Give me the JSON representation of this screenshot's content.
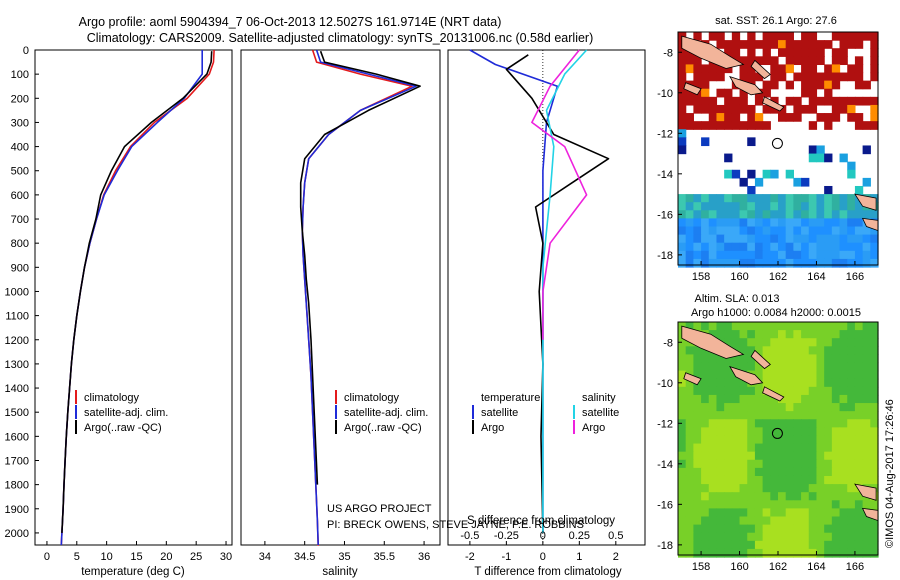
{
  "title": {
    "line1": "Argo profile: aoml 5904394_7 06-Oct-2013 12.5027S 161.9714E (NRT data)",
    "line2": "Climatology: CARS2009. Satellite-adjusted climatology: synTS_20131006.nc (0.58d earlier)"
  },
  "colors": {
    "climatology": "#e31a1c",
    "satellite": "#1f2bd8",
    "argo": "#000000",
    "sat_diff": "#22d3e6",
    "argo_diff": "#ee22dd"
  },
  "chart_data": [
    {
      "type": "line",
      "name": "temperature",
      "xlabel": "temperature (deg C)",
      "ylabel": "",
      "xlim": [
        -2,
        31
      ],
      "ylim": [
        2050,
        0
      ],
      "xticks": [
        0,
        5,
        10,
        15,
        20,
        25,
        30
      ],
      "yticks": [
        0,
        100,
        200,
        300,
        400,
        500,
        600,
        700,
        800,
        900,
        1000,
        1100,
        1200,
        1300,
        1400,
        1500,
        1600,
        1700,
        1800,
        1900,
        2000
      ],
      "series": [
        {
          "name": "climatology",
          "color": "#e31a1c",
          "x": [
            28,
            27.9,
            27.2,
            23.5,
            18,
            14,
            11.5,
            9.5,
            8.3,
            7.2,
            6.3,
            5.6,
            5,
            4.5,
            4.1,
            3.8,
            3.5,
            3.25,
            3.05,
            2.85,
            2.7,
            2.5,
            2.4
          ],
          "y": [
            0,
            50,
            100,
            200,
            300,
            400,
            500,
            600,
            700,
            800,
            900,
            1000,
            1100,
            1200,
            1300,
            1400,
            1500,
            1600,
            1700,
            1800,
            1900,
            2000,
            2050
          ]
        },
        {
          "name": "satellite-adj. clim.",
          "color": "#1f2bd8",
          "x": [
            26,
            26,
            26,
            23,
            18.5,
            14.2,
            11.8,
            9.6,
            8.3,
            7.2,
            6.3,
            5.6,
            5,
            4.5,
            4.1,
            3.8,
            3.5,
            3.25,
            3.05,
            2.85,
            2.7,
            2.5,
            2.4
          ],
          "y": [
            0,
            50,
            100,
            200,
            300,
            400,
            500,
            600,
            700,
            800,
            900,
            1000,
            1100,
            1200,
            1300,
            1400,
            1500,
            1600,
            1700,
            1800,
            1900,
            2000,
            2050
          ]
        },
        {
          "name": "Argo(..raw -QC)",
          "color": "#000000",
          "x": [
            27.6,
            27.5,
            26.8,
            22.8,
            17.5,
            13,
            10.8,
            9,
            8.2,
            7.1,
            6.3,
            5.6,
            5,
            4.5,
            4.1,
            3.8,
            3.5,
            3.25,
            3.05,
            2.85,
            2.7,
            2.5
          ],
          "y": [
            5,
            50,
            100,
            200,
            300,
            400,
            500,
            600,
            700,
            800,
            900,
            1000,
            1100,
            1200,
            1300,
            1400,
            1500,
            1600,
            1700,
            1800,
            1900,
            2000
          ]
        }
      ],
      "legend": [
        "climatology",
        "satellite-adj. clim.",
        "Argo(..raw -QC)"
      ]
    },
    {
      "type": "line",
      "name": "salinity",
      "xlabel": "salinity",
      "xlim": [
        33.7,
        36.2
      ],
      "ylim": [
        2050,
        0
      ],
      "xticks": [
        34,
        34.5,
        35,
        35.5,
        36
      ],
      "series": [
        {
          "name": "climatology",
          "color": "#e31a1c",
          "x": [
            34.6,
            34.65,
            35.2,
            35.85,
            35.2,
            34.8,
            34.55,
            34.5,
            34.48,
            34.47,
            34.48,
            34.5,
            34.52,
            34.55,
            34.58,
            34.6,
            34.62,
            34.64,
            34.66,
            34.67,
            34.68
          ],
          "y": [
            0,
            50,
            100,
            150,
            250,
            350,
            450,
            550,
            650,
            750,
            850,
            950,
            1050,
            1200,
            1350,
            1500,
            1650,
            1800,
            1950,
            2050,
            2050
          ]
        },
        {
          "name": "satellite-adj. clim.",
          "color": "#1f2bd8",
          "x": [
            34.65,
            34.7,
            35.3,
            35.9,
            35.2,
            34.8,
            34.55,
            34.5,
            34.48,
            34.47,
            34.48,
            34.5,
            34.52,
            34.55,
            34.58,
            34.6,
            34.62,
            34.64,
            34.66,
            34.67
          ],
          "y": [
            0,
            50,
            100,
            150,
            250,
            350,
            450,
            550,
            650,
            750,
            850,
            950,
            1050,
            1200,
            1350,
            1500,
            1650,
            1800,
            1950,
            2050
          ]
        },
        {
          "name": "Argo(..raw -QC)",
          "color": "#000000",
          "x": [
            34.7,
            34.75,
            35.4,
            35.95,
            35.3,
            34.75,
            34.5,
            34.45,
            34.45,
            34.47,
            34.5,
            34.52,
            34.55,
            34.58,
            34.6,
            34.62,
            34.64,
            34.66
          ],
          "y": [
            5,
            50,
            100,
            150,
            250,
            350,
            450,
            550,
            650,
            750,
            850,
            950,
            1050,
            1200,
            1350,
            1500,
            1650,
            1800
          ]
        }
      ],
      "legend": [
        "climatology",
        "satellite-adj. clim.",
        "Argo(..raw -QC)"
      ]
    },
    {
      "type": "line",
      "name": "difference",
      "xlabel": "T difference from climatology",
      "xlabel_top": "S difference from climatology",
      "xlim": [
        -2.6,
        2.8
      ],
      "ylim": [
        2050,
        0
      ],
      "xticks": [
        -2,
        -1,
        0,
        1,
        2
      ],
      "xticks_s": [
        "-0.5",
        "-0.25",
        "0",
        "0.25",
        "0.5"
      ],
      "series": [
        {
          "name": "temperature satellite",
          "color": "#1f2bd8",
          "x": [
            -2,
            -1.3,
            0.4,
            0.1,
            0,
            0,
            0,
            0
          ],
          "y": [
            0,
            60,
            150,
            300,
            500,
            800,
            1200,
            2000
          ]
        },
        {
          "name": "temperature Argo",
          "color": "#000000",
          "x": [
            -0.4,
            -1,
            -0.3,
            0.3,
            1.8,
            0.8,
            -0.2,
            0,
            -0.1,
            0,
            -0.05,
            0
          ],
          "y": [
            20,
            80,
            200,
            350,
            450,
            550,
            650,
            800,
            1000,
            1300,
            1600,
            2000
          ]
        },
        {
          "name": "salinity satellite",
          "color": "#22d3e6",
          "x": [
            1.2,
            0.6,
            0.1,
            0.3,
            0.2,
            0,
            0,
            0
          ],
          "y": [
            0,
            100,
            250,
            400,
            600,
            900,
            1400,
            2000
          ]
        },
        {
          "name": "salinity Argo",
          "color": "#ee22dd",
          "x": [
            1,
            0.2,
            -0.3,
            0.6,
            1.2,
            0.2,
            0,
            0
          ],
          "y": [
            0,
            150,
            300,
            400,
            600,
            800,
            1000,
            1200
          ]
        }
      ],
      "legend_titles": [
        "temperature",
        "salinity"
      ],
      "legend": [
        "satellite",
        "Argo",
        "satellite",
        "Argo"
      ]
    },
    {
      "type": "heatmap",
      "name": "sst_map",
      "title": "sat. SST: 26.1  Argo: 27.6",
      "xlim": [
        156.8,
        167.2
      ],
      "ylim": [
        -18.5,
        -7
      ],
      "xticks": [
        158,
        160,
        162,
        164,
        166
      ],
      "yticks": [
        -8,
        -10,
        -12,
        -14,
        -16,
        -18
      ],
      "float_position": [
        161.97,
        -12.5
      ]
    },
    {
      "type": "heatmap",
      "name": "sla_map",
      "title_line1": "Altim. SLA: 0.013",
      "title_line2": "Argo h1000: 0.0084 h2000: 0.0015",
      "xlim": [
        156.8,
        167.2
      ],
      "ylim": [
        -18.5,
        -7
      ],
      "xticks": [
        158,
        160,
        162,
        164,
        166
      ],
      "yticks": [
        -8,
        -10,
        -12,
        -14,
        -16,
        -18
      ],
      "float_position": [
        161.97,
        -12.5
      ]
    }
  ],
  "project": {
    "line1": "US ARGO PROJECT",
    "line2": "PI: BRECK OWENS, STEVE JAYNE, P.E. ROBBINS"
  },
  "credit": "©IMOS 04-Aug-2017 17:26:46"
}
